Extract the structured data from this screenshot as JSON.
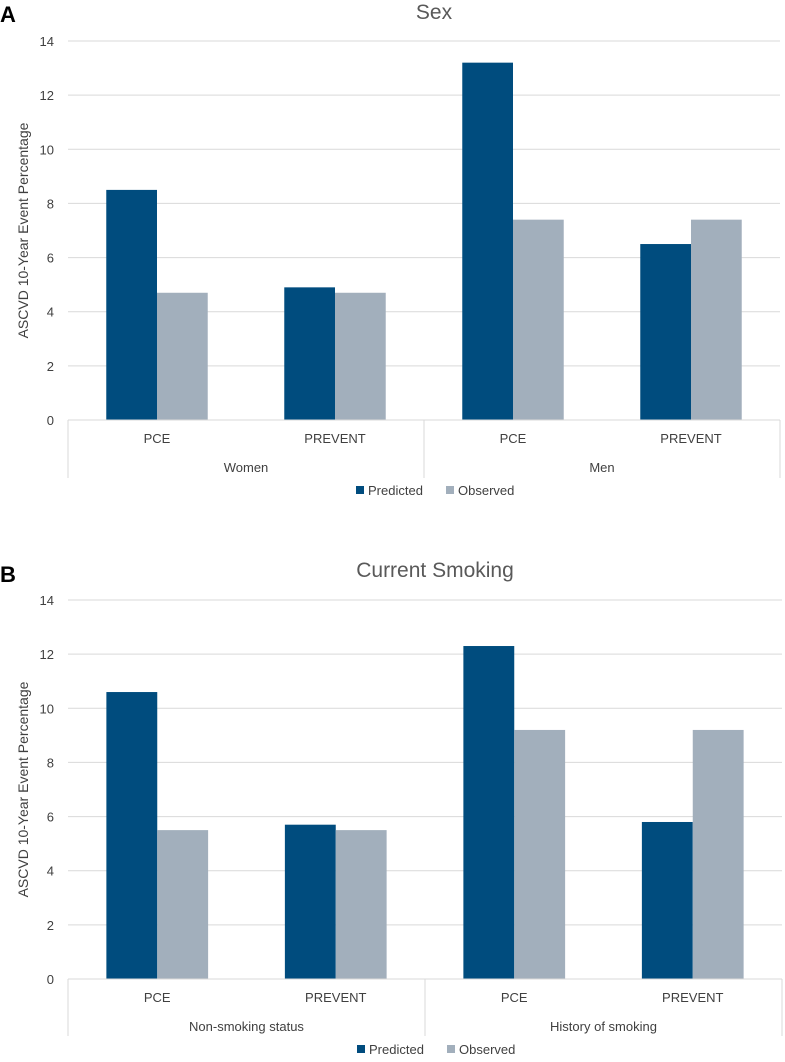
{
  "chart_data": [
    {
      "panel_label": "A",
      "type": "bar",
      "title": "Sex",
      "ylabel": "ASCVD 10-Year Event Percentage",
      "xlabel": "",
      "ylim": [
        0,
        14
      ],
      "yticks": [
        0,
        2,
        4,
        6,
        8,
        10,
        12,
        14
      ],
      "grid": true,
      "legend": "bottom",
      "groups": [
        {
          "label": "Women",
          "categories": [
            "PCE",
            "PREVENT"
          ]
        },
        {
          "label": "Men",
          "categories": [
            "PCE",
            "PREVENT"
          ]
        }
      ],
      "series": [
        {
          "name": "Predicted",
          "color": "#004c7e",
          "values": [
            8.5,
            4.9,
            13.2,
            6.5
          ]
        },
        {
          "name": "Observed",
          "color": "#a2afbc",
          "values": [
            4.7,
            4.7,
            7.4,
            7.4
          ]
        }
      ]
    },
    {
      "panel_label": "B",
      "type": "bar",
      "title": "Current Smoking",
      "ylabel": "ASCVD 10-Year Event Percentage",
      "xlabel": "",
      "ylim": [
        0,
        14
      ],
      "yticks": [
        0,
        2,
        4,
        6,
        8,
        10,
        12,
        14
      ],
      "grid": true,
      "legend": "bottom",
      "groups": [
        {
          "label": "Non-smoking status",
          "categories": [
            "PCE",
            "PREVENT"
          ]
        },
        {
          "label": "History of smoking",
          "categories": [
            "PCE",
            "PREVENT"
          ]
        }
      ],
      "series": [
        {
          "name": "Predicted",
          "color": "#004c7e",
          "values": [
            10.6,
            5.7,
            12.3,
            5.8
          ]
        },
        {
          "name": "Observed",
          "color": "#a2afbc",
          "values": [
            5.5,
            5.5,
            9.2,
            9.2
          ]
        }
      ]
    }
  ]
}
